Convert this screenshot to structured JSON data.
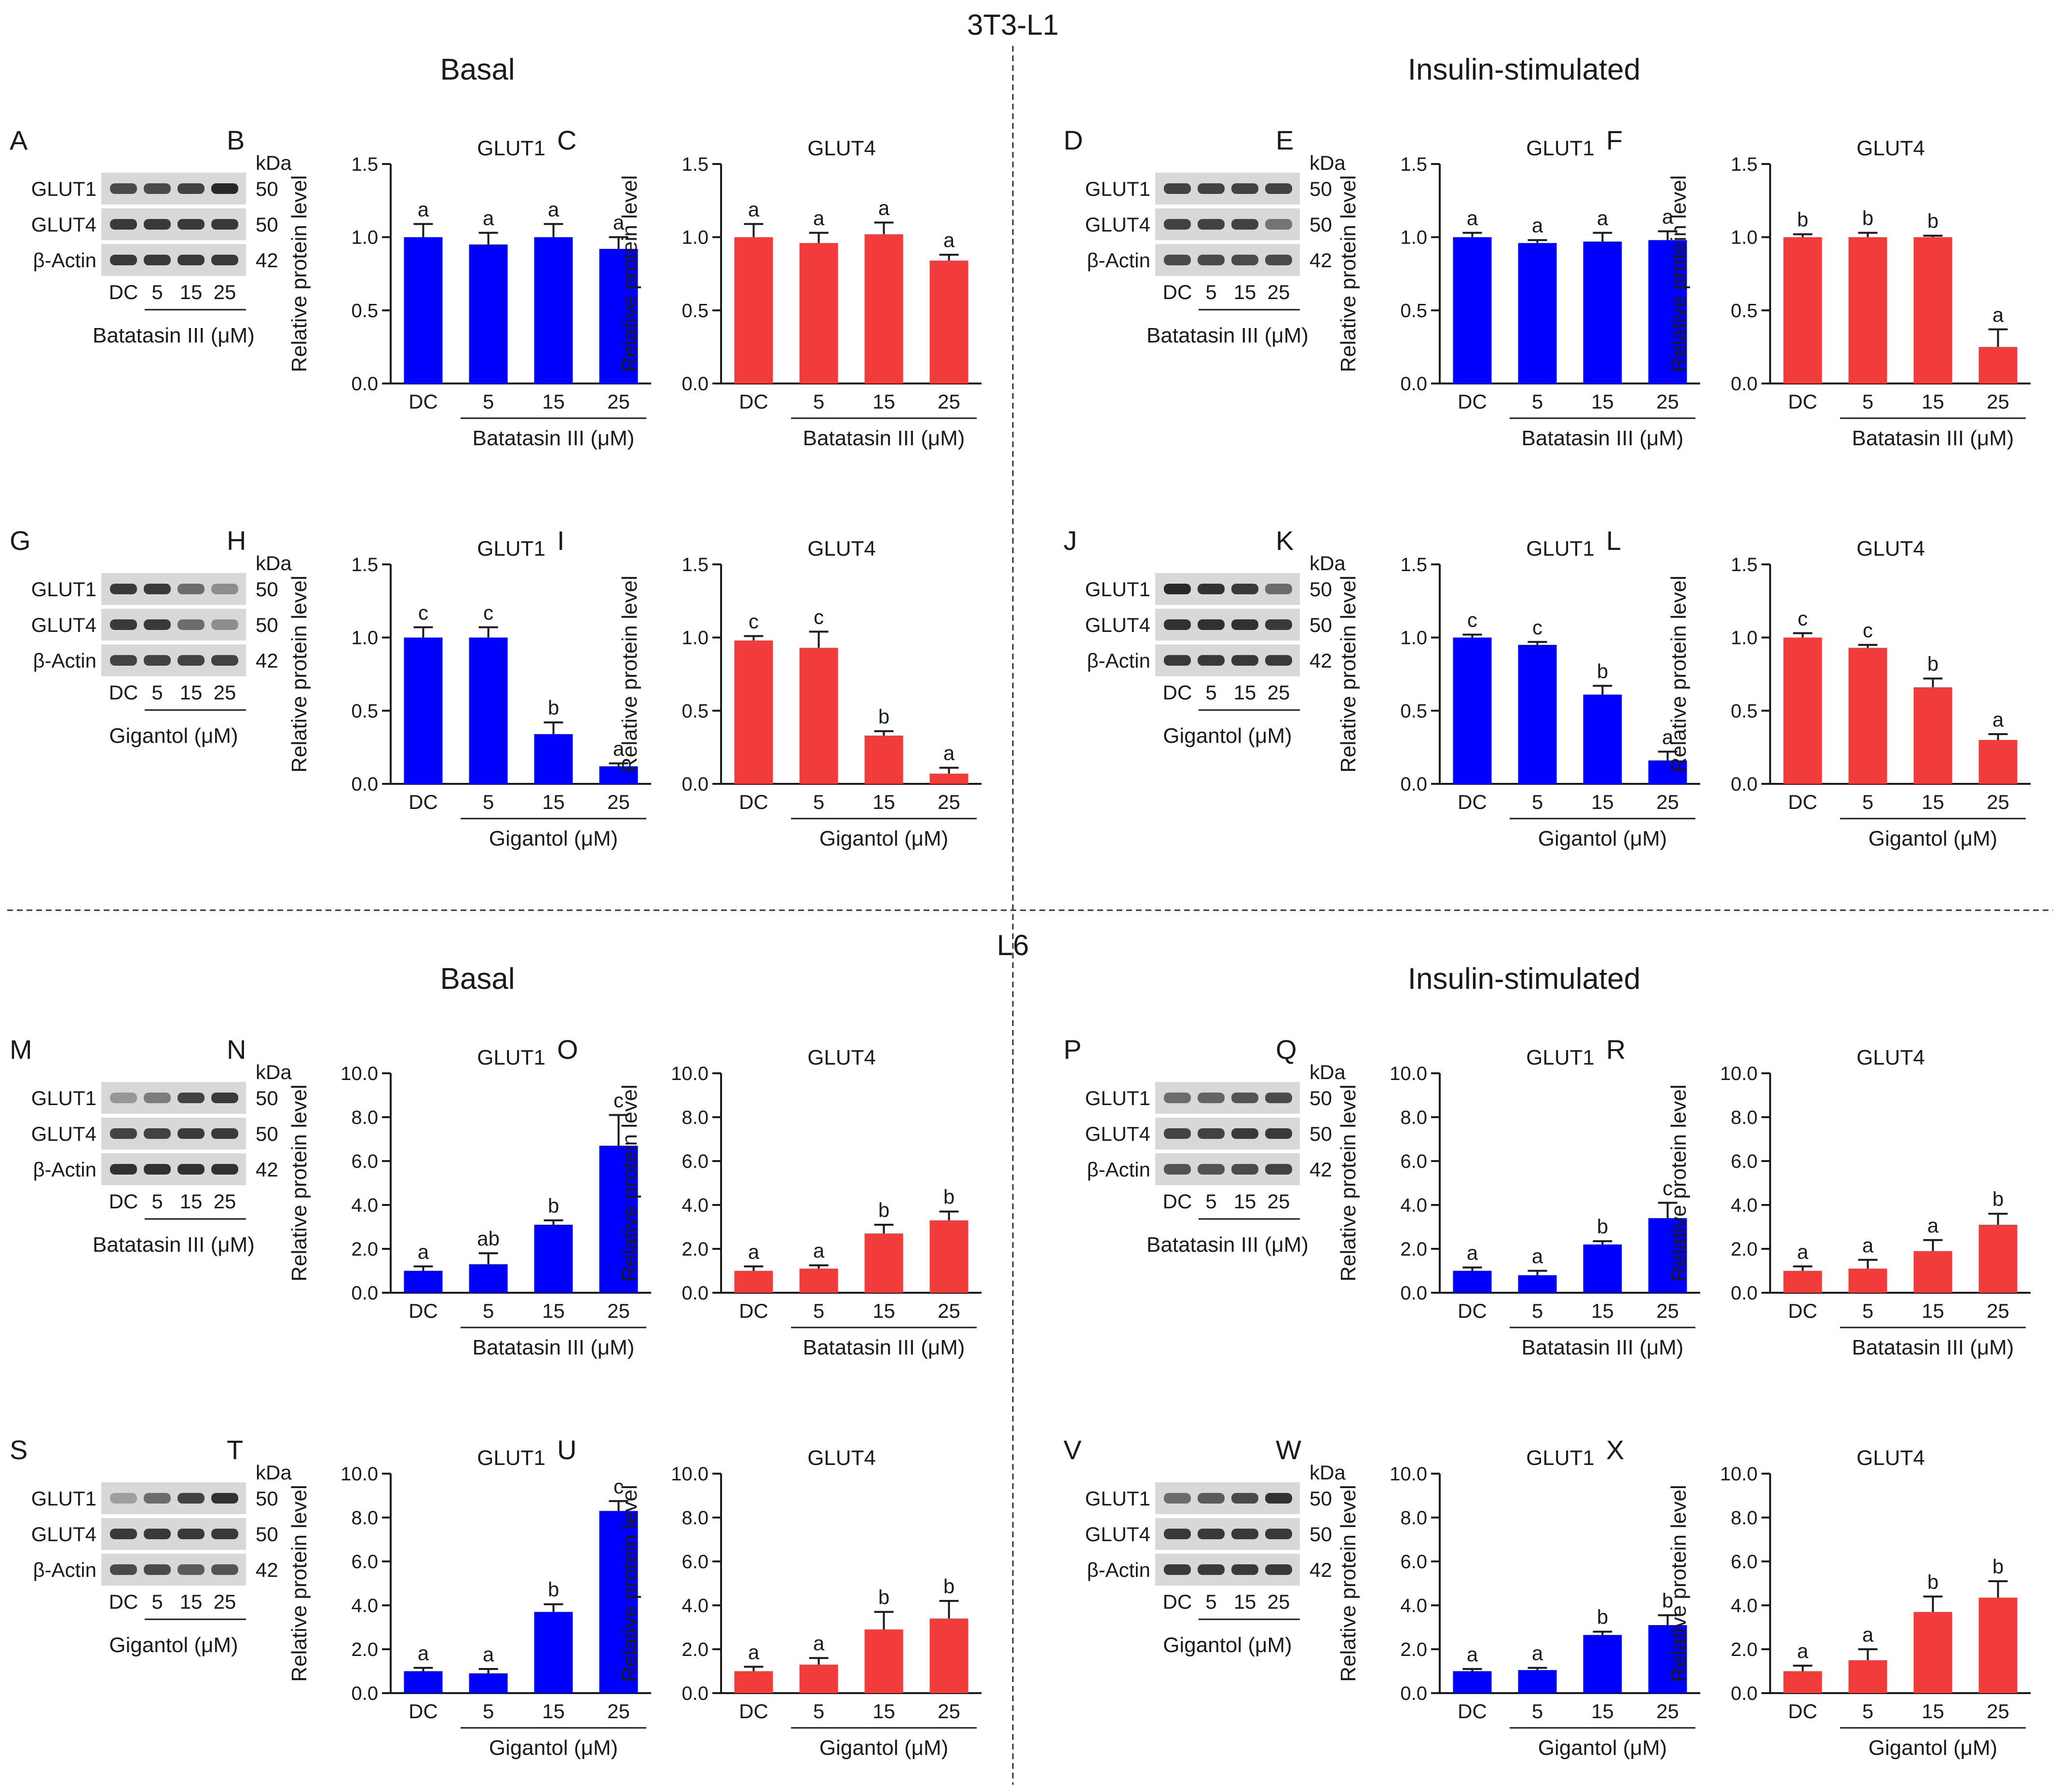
{
  "figure": {
    "top_title": "3T3-L1",
    "mid_title": "L6",
    "sections": {
      "basal_top": "Basal",
      "insulin_top": "Insulin-stimulated",
      "basal_bottom": "Basal",
      "insulin_bottom": "Insulin-stimulated"
    },
    "blot_labels": {
      "kda_unit": "kDa",
      "proteins": [
        "GLUT1",
        "GLUT4",
        "β-Actin"
      ],
      "kda_values": [
        "50",
        "50",
        "42"
      ],
      "lanes": [
        "DC",
        "5",
        "15",
        "25"
      ]
    },
    "treatments": {
      "batatasin": "Batatasin III (μM)",
      "gigantol": "Gigantol (μM)"
    },
    "ylabel": "Relative protein level",
    "colors": {
      "blue": "#0000ff",
      "red": "#f23c3c",
      "text": "#1a1a1a"
    }
  },
  "blots": [
    {
      "panel_letter": "A",
      "treatment": "batatasin",
      "grid": "r1c1"
    },
    {
      "panel_letter": "D",
      "treatment": "batatasin",
      "grid": "r1c4"
    },
    {
      "panel_letter": "G",
      "treatment": "gigantol",
      "grid": "r2c1"
    },
    {
      "panel_letter": "J",
      "treatment": "gigantol",
      "grid": "r2c4"
    },
    {
      "panel_letter": "M",
      "treatment": "batatasin",
      "grid": "r3c1"
    },
    {
      "panel_letter": "P",
      "treatment": "batatasin",
      "grid": "r3c4"
    },
    {
      "panel_letter": "S",
      "treatment": "gigantol",
      "grid": "r4c1"
    },
    {
      "panel_letter": "V",
      "treatment": "gigantol",
      "grid": "r4c4"
    }
  ],
  "chart_data": [
    {
      "panel_letter": "B",
      "type": "bar",
      "title": "GLUT1",
      "color": "blue",
      "ylim": [
        0,
        1.5
      ],
      "yticks": [
        "0.0",
        "0.5",
        "1.0",
        "1.5"
      ],
      "categories": [
        "DC",
        "5",
        "15",
        "25"
      ],
      "values": [
        1.0,
        0.95,
        1.0,
        0.92
      ],
      "errors": [
        0.09,
        0.08,
        0.09,
        0.08
      ],
      "letters": [
        "a",
        "a",
        "a",
        "a"
      ],
      "xlabel": "Batatasin III (μM)",
      "ylabel": "Relative protein level"
    },
    {
      "panel_letter": "C",
      "type": "bar",
      "title": "GLUT4",
      "color": "red",
      "ylim": [
        0,
        1.5
      ],
      "yticks": [
        "0.0",
        "0.5",
        "1.0",
        "1.5"
      ],
      "categories": [
        "DC",
        "5",
        "15",
        "25"
      ],
      "values": [
        1.0,
        0.96,
        1.02,
        0.84
      ],
      "errors": [
        0.09,
        0.07,
        0.08,
        0.04
      ],
      "letters": [
        "a",
        "a",
        "a",
        "a"
      ],
      "xlabel": "Batatasin III (μM)",
      "ylabel": "Relative protein level"
    },
    {
      "panel_letter": "E",
      "type": "bar",
      "title": "GLUT1",
      "color": "blue",
      "ylim": [
        0,
        1.5
      ],
      "yticks": [
        "0.0",
        "0.5",
        "1.0",
        "1.5"
      ],
      "categories": [
        "DC",
        "5",
        "15",
        "25"
      ],
      "values": [
        1.0,
        0.96,
        0.97,
        0.98
      ],
      "errors": [
        0.03,
        0.02,
        0.06,
        0.06
      ],
      "letters": [
        "a",
        "a",
        "a",
        "a"
      ],
      "xlabel": "Batatasin III (μM)",
      "ylabel": "Relative protein level"
    },
    {
      "panel_letter": "F",
      "type": "bar",
      "title": "GLUT4",
      "color": "red",
      "ylim": [
        0,
        1.5
      ],
      "yticks": [
        "0.0",
        "0.5",
        "1.0",
        "1.5"
      ],
      "categories": [
        "DC",
        "5",
        "15",
        "25"
      ],
      "values": [
        1.0,
        1.0,
        1.0,
        0.25
      ],
      "errors": [
        0.02,
        0.03,
        0.01,
        0.12
      ],
      "letters": [
        "b",
        "b",
        "b",
        "a"
      ],
      "xlabel": "Batatasin III (μM)",
      "ylabel": "Relative protein level"
    },
    {
      "panel_letter": "H",
      "type": "bar",
      "title": "GLUT1",
      "color": "blue",
      "ylim": [
        0,
        1.5
      ],
      "yticks": [
        "0.0",
        "0.5",
        "1.0",
        "1.5"
      ],
      "categories": [
        "DC",
        "5",
        "15",
        "25"
      ],
      "values": [
        1.0,
        1.0,
        0.34,
        0.12
      ],
      "errors": [
        0.07,
        0.07,
        0.08,
        0.02
      ],
      "letters": [
        "c",
        "c",
        "b",
        "a"
      ],
      "xlabel": "Gigantol (μM)",
      "ylabel": "Relative protein level"
    },
    {
      "panel_letter": "I",
      "type": "bar",
      "title": "GLUT4",
      "color": "red",
      "ylim": [
        0,
        1.5
      ],
      "yticks": [
        "0.0",
        "0.5",
        "1.0",
        "1.5"
      ],
      "categories": [
        "DC",
        "5",
        "15",
        "25"
      ],
      "values": [
        0.98,
        0.93,
        0.33,
        0.07
      ],
      "errors": [
        0.03,
        0.11,
        0.03,
        0.04
      ],
      "letters": [
        "c",
        "c",
        "b",
        "a"
      ],
      "xlabel": "Gigantol (μM)",
      "ylabel": "Relative protein level"
    },
    {
      "panel_letter": "K",
      "type": "bar",
      "title": "GLUT1",
      "color": "blue",
      "ylim": [
        0,
        1.5
      ],
      "yticks": [
        "0.0",
        "0.5",
        "1.0",
        "1.5"
      ],
      "categories": [
        "DC",
        "5",
        "15",
        "25"
      ],
      "values": [
        1.0,
        0.95,
        0.61,
        0.16
      ],
      "errors": [
        0.02,
        0.02,
        0.06,
        0.06
      ],
      "letters": [
        "c",
        "c",
        "b",
        "a"
      ],
      "xlabel": "Gigantol (μM)",
      "ylabel": "Relative protein level"
    },
    {
      "panel_letter": "L",
      "type": "bar",
      "title": "GLUT4",
      "color": "red",
      "ylim": [
        0,
        1.5
      ],
      "yticks": [
        "0.0",
        "0.5",
        "1.0",
        "1.5"
      ],
      "categories": [
        "DC",
        "5",
        "15",
        "25"
      ],
      "values": [
        1.0,
        0.93,
        0.66,
        0.3
      ],
      "errors": [
        0.03,
        0.02,
        0.06,
        0.04
      ],
      "letters": [
        "c",
        "c",
        "b",
        "a"
      ],
      "xlabel": "Gigantol (μM)",
      "ylabel": "Relative protein level"
    },
    {
      "panel_letter": "N",
      "type": "bar",
      "title": "GLUT1",
      "color": "blue",
      "ylim": [
        0,
        10
      ],
      "yticks": [
        "0.0",
        "2.0",
        "4.0",
        "6.0",
        "8.0",
        "10.0"
      ],
      "categories": [
        "DC",
        "5",
        "15",
        "25"
      ],
      "values": [
        1.0,
        1.3,
        3.1,
        6.7
      ],
      "errors": [
        0.2,
        0.5,
        0.2,
        1.4
      ],
      "letters": [
        "a",
        "ab",
        "b",
        "c"
      ],
      "xlabel": "Batatasin III (μM)",
      "ylabel": "Relative protein level"
    },
    {
      "panel_letter": "O",
      "type": "bar",
      "title": "GLUT4",
      "color": "red",
      "ylim": [
        0,
        10
      ],
      "yticks": [
        "0.0",
        "2.0",
        "4.0",
        "6.0",
        "8.0",
        "10.0"
      ],
      "categories": [
        "DC",
        "5",
        "15",
        "25"
      ],
      "values": [
        1.0,
        1.1,
        2.7,
        3.3
      ],
      "errors": [
        0.2,
        0.15,
        0.4,
        0.4
      ],
      "letters": [
        "a",
        "a",
        "b",
        "b"
      ],
      "xlabel": "Batatasin III (μM)",
      "ylabel": "Relative protein level"
    },
    {
      "panel_letter": "Q",
      "type": "bar",
      "title": "GLUT1",
      "color": "blue",
      "ylim": [
        0,
        10
      ],
      "yticks": [
        "0.0",
        "2.0",
        "4.0",
        "6.0",
        "8.0",
        "10.0"
      ],
      "categories": [
        "DC",
        "5",
        "15",
        "25"
      ],
      "values": [
        1.0,
        0.8,
        2.2,
        3.4
      ],
      "errors": [
        0.15,
        0.2,
        0.15,
        0.7
      ],
      "letters": [
        "a",
        "a",
        "b",
        "c"
      ],
      "xlabel": "Batatasin III (μM)",
      "ylabel": "Relative protein level"
    },
    {
      "panel_letter": "R",
      "type": "bar",
      "title": "GLUT4",
      "color": "red",
      "ylim": [
        0,
        10
      ],
      "yticks": [
        "0.0",
        "2.0",
        "4.0",
        "6.0",
        "8.0",
        "10.0"
      ],
      "categories": [
        "DC",
        "5",
        "15",
        "25"
      ],
      "values": [
        1.0,
        1.1,
        1.9,
        3.1
      ],
      "errors": [
        0.2,
        0.4,
        0.5,
        0.5
      ],
      "letters": [
        "a",
        "a",
        "a",
        "b"
      ],
      "xlabel": "Batatasin III (μM)",
      "ylabel": "Relative protein level"
    },
    {
      "panel_letter": "T",
      "type": "bar",
      "title": "GLUT1",
      "color": "blue",
      "ylim": [
        0,
        10
      ],
      "yticks": [
        "0.0",
        "2.0",
        "4.0",
        "6.0",
        "8.0",
        "10.0"
      ],
      "categories": [
        "DC",
        "5",
        "15",
        "25"
      ],
      "values": [
        1.0,
        0.9,
        3.7,
        8.3
      ],
      "errors": [
        0.15,
        0.2,
        0.35,
        0.45
      ],
      "letters": [
        "a",
        "a",
        "b",
        "c"
      ],
      "xlabel": "Gigantol (μM)",
      "ylabel": "Relative protein level"
    },
    {
      "panel_letter": "U",
      "type": "bar",
      "title": "GLUT4",
      "color": "red",
      "ylim": [
        0,
        10
      ],
      "yticks": [
        "0.0",
        "2.0",
        "4.0",
        "6.0",
        "8.0",
        "10.0"
      ],
      "categories": [
        "DC",
        "5",
        "15",
        "25"
      ],
      "values": [
        1.0,
        1.3,
        2.9,
        3.4
      ],
      "errors": [
        0.2,
        0.3,
        0.8,
        0.8
      ],
      "letters": [
        "a",
        "a",
        "b",
        "b"
      ],
      "xlabel": "Gigantol (μM)",
      "ylabel": "Relative protein level"
    },
    {
      "panel_letter": "W",
      "type": "bar",
      "title": "GLUT1",
      "color": "blue",
      "ylim": [
        0,
        10
      ],
      "yticks": [
        "0.0",
        "2.0",
        "4.0",
        "6.0",
        "8.0",
        "10.0"
      ],
      "categories": [
        "DC",
        "5",
        "15",
        "25"
      ],
      "values": [
        1.0,
        1.05,
        2.65,
        3.1
      ],
      "errors": [
        0.1,
        0.1,
        0.15,
        0.45
      ],
      "letters": [
        "a",
        "a",
        "b",
        "b"
      ],
      "xlabel": "Gigantol (μM)",
      "ylabel": "Relative protein level"
    },
    {
      "panel_letter": "X",
      "type": "bar",
      "title": "GLUT4",
      "color": "red",
      "ylim": [
        0,
        10
      ],
      "yticks": [
        "0.0",
        "2.0",
        "4.0",
        "6.0",
        "8.0",
        "10.0"
      ],
      "categories": [
        "DC",
        "5",
        "15",
        "25"
      ],
      "values": [
        1.0,
        1.5,
        3.7,
        4.35
      ],
      "errors": [
        0.25,
        0.5,
        0.7,
        0.75
      ],
      "letters": [
        "a",
        "a",
        "b",
        "b"
      ],
      "xlabel": "Gigantol (μM)",
      "ylabel": "Relative protein level"
    }
  ]
}
